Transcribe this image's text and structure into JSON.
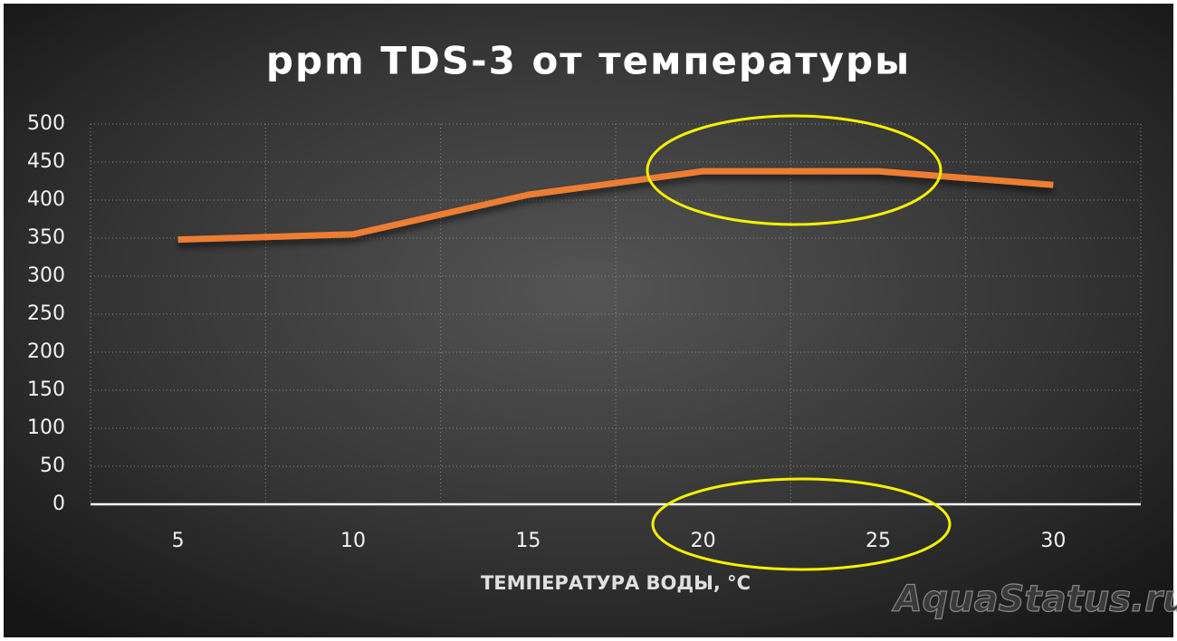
{
  "chart_data": {
    "type": "line",
    "title": "ppm TDS-3 от температуры",
    "x_label": "ТЕМПЕРАТУРА ВОДЫ, °C",
    "categories": [
      "5",
      "10",
      "15",
      "20",
      "25",
      "30"
    ],
    "values": [
      348,
      355,
      407,
      438,
      438,
      420
    ],
    "color": "#ed7d31",
    "ylim": [
      0,
      500
    ],
    "yticks": [
      0,
      50,
      100,
      150,
      200,
      250,
      300,
      350,
      400,
      450,
      500
    ],
    "grid": true,
    "watermark": "AquaStatus.ru"
  }
}
